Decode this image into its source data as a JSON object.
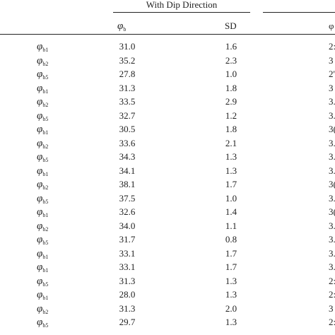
{
  "table": {
    "group_header": "With Dip Direction",
    "col_phi_sub": "b",
    "col_sd": "SD",
    "col_clipped": "φ",
    "rows": [
      {
        "sym": "φ",
        "sub": "b1",
        "phib": "31.0",
        "sd": "1.6",
        "clip": "2:"
      },
      {
        "sym": "φ",
        "sub": "b2",
        "phib": "35.2",
        "sd": "2.3",
        "clip": "3"
      },
      {
        "sym": "φ",
        "sub": "b5",
        "phib": "27.8",
        "sd": "1.0",
        "clip": "2'"
      },
      {
        "sym": "φ",
        "sub": "b1",
        "phib": "31.3",
        "sd": "1.8",
        "clip": "3"
      },
      {
        "sym": "φ",
        "sub": "b2",
        "phib": "33.5",
        "sd": "2.9",
        "clip": "3."
      },
      {
        "sym": "φ",
        "sub": "b5",
        "phib": "32.7",
        "sd": "1.2",
        "clip": "3."
      },
      {
        "sym": "φ",
        "sub": "b1",
        "phib": "30.5",
        "sd": "1.8",
        "clip": "3("
      },
      {
        "sym": "φ",
        "sub": "b2",
        "phib": "33.6",
        "sd": "2.1",
        "clip": "3."
      },
      {
        "sym": "φ",
        "sub": "b5",
        "phib": "34.3",
        "sd": "1.3",
        "clip": "3."
      },
      {
        "sym": "φ",
        "sub": "b1",
        "phib": "34.1",
        "sd": "1.3",
        "clip": "3."
      },
      {
        "sym": "φ",
        "sub": "b2",
        "phib": "38.1",
        "sd": "1.7",
        "clip": "3("
      },
      {
        "sym": "φ",
        "sub": "b5",
        "phib": "37.5",
        "sd": "1.0",
        "clip": "3."
      },
      {
        "sym": "φ",
        "sub": "b1",
        "phib": "32.6",
        "sd": "1.4",
        "clip": "3("
      },
      {
        "sym": "φ",
        "sub": "b2",
        "phib": "34.0",
        "sd": "1.1",
        "clip": "3."
      },
      {
        "sym": "φ",
        "sub": "b5",
        "phib": "31.7",
        "sd": "0.8",
        "clip": "3."
      },
      {
        "sym": "φ",
        "sub": "b1",
        "phib": "33.1",
        "sd": "1.7",
        "clip": "3."
      },
      {
        "sym": "φ",
        "sub": "b1",
        "phib": "33.1",
        "sd": "1.7",
        "clip": "3."
      },
      {
        "sym": "φ",
        "sub": "b5",
        "phib": "31.3",
        "sd": "1.3",
        "clip": "2:"
      },
      {
        "sym": "φ",
        "sub": "b1",
        "phib": "28.0",
        "sd": "1.3",
        "clip": "2:"
      },
      {
        "sym": "φ",
        "sub": "b2",
        "phib": "31.3",
        "sd": "2.0",
        "clip": "3"
      },
      {
        "sym": "φ",
        "sub": "b5",
        "phib": "29.7",
        "sd": "1.3",
        "clip": "2:"
      }
    ]
  }
}
